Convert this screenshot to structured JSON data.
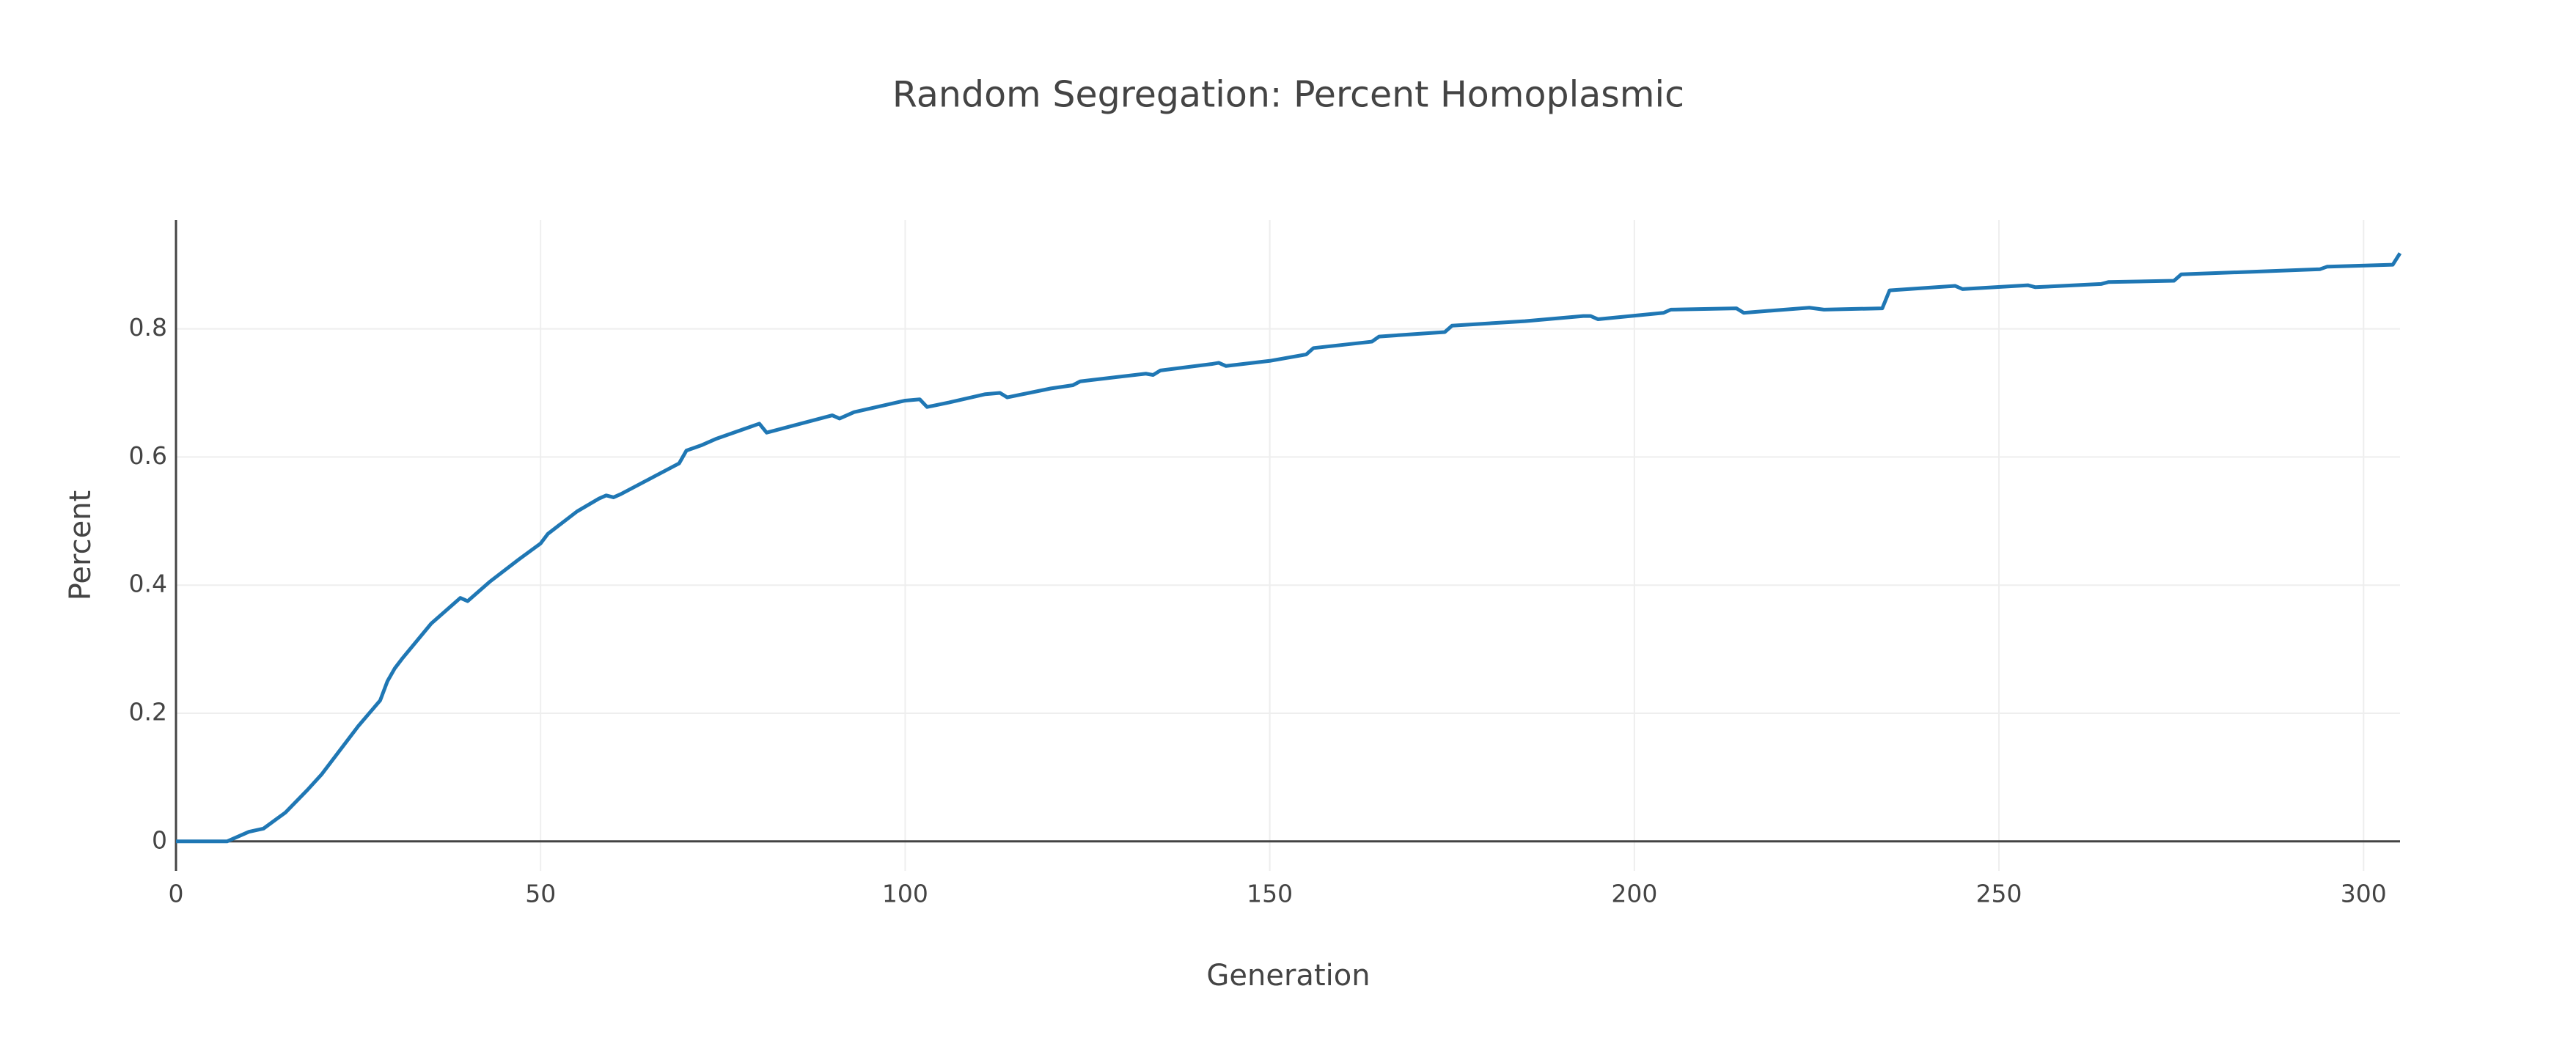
{
  "chart_data": {
    "type": "line",
    "title": "Random Segregation: Percent Homoplasmic",
    "x_label": "Generation",
    "y_label": "Percent",
    "x": [
      0,
      7,
      10,
      12,
      15,
      18,
      20,
      25,
      28,
      29,
      30,
      31,
      35,
      39,
      40,
      43,
      47,
      50,
      51,
      55,
      58,
      59,
      60,
      61,
      64,
      69,
      70,
      72,
      74,
      80,
      81,
      90,
      91,
      93,
      100,
      102,
      103,
      106,
      111,
      113,
      114,
      120,
      123,
      124,
      133,
      134,
      135,
      142,
      143,
      144,
      150,
      155,
      156,
      164,
      165,
      174,
      175,
      185,
      193,
      194,
      195,
      204,
      205,
      214,
      215,
      224,
      226,
      234,
      235,
      244,
      245,
      254,
      255,
      264,
      265,
      274,
      275,
      294,
      295,
      304,
      305
    ],
    "series": [
      {
        "name": "Percent Homoplasmic",
        "color": "#1f77b4",
        "values": [
          0,
          0,
          0.015,
          0.02,
          0.045,
          0.08,
          0.105,
          0.18,
          0.22,
          0.25,
          0.27,
          0.285,
          0.34,
          0.38,
          0.375,
          0.405,
          0.44,
          0.465,
          0.48,
          0.515,
          0.535,
          0.54,
          0.537,
          0.542,
          0.56,
          0.59,
          0.61,
          0.618,
          0.628,
          0.652,
          0.638,
          0.665,
          0.66,
          0.67,
          0.688,
          0.69,
          0.678,
          0.685,
          0.698,
          0.7,
          0.693,
          0.707,
          0.712,
          0.718,
          0.73,
          0.728,
          0.735,
          0.745,
          0.747,
          0.742,
          0.75,
          0.76,
          0.77,
          0.78,
          0.788,
          0.795,
          0.805,
          0.812,
          0.82,
          0.82,
          0.815,
          0.825,
          0.83,
          0.832,
          0.825,
          0.833,
          0.83,
          0.832,
          0.86,
          0.867,
          0.862,
          0.868,
          0.865,
          0.87,
          0.873,
          0.875,
          0.885,
          0.893,
          0.897,
          0.9,
          0.918
        ]
      }
    ],
    "xlim": [
      0,
      305
    ],
    "ylim": [
      -0.046,
      0.97
    ],
    "xticks": [
      0,
      50,
      100,
      150,
      200,
      250,
      300
    ],
    "yticks": [
      0,
      0.2,
      0.4,
      0.6,
      0.8
    ],
    "grid": true
  }
}
